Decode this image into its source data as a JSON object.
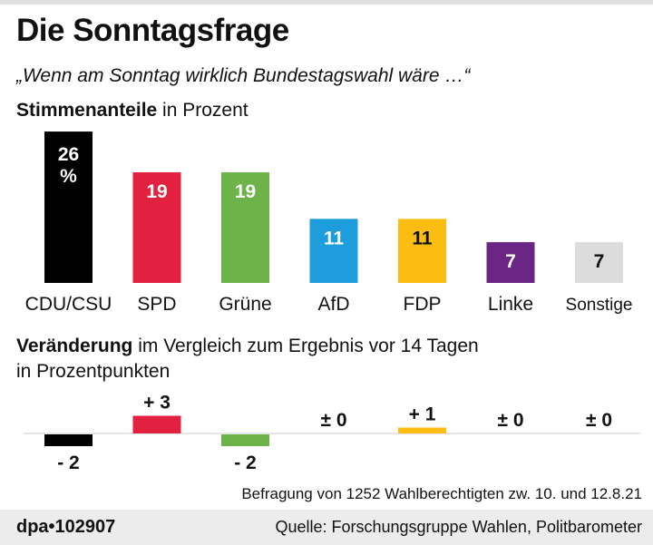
{
  "header": {
    "title": "Die Sonntagsfrage",
    "subtitle": "„Wenn am Sonntag wirklich Bundestagswahl wäre …“"
  },
  "chart_data": [
    {
      "type": "bar",
      "title_bold": "Stimmenanteile",
      "title_rest": " in Prozent",
      "categories": [
        "CDU/CSU",
        "SPD",
        "Grüne",
        "AfD",
        "FDP",
        "Linke",
        "Sonstige"
      ],
      "values": [
        26,
        19,
        19,
        11,
        11,
        7,
        7
      ],
      "labels": [
        "26 %",
        "19",
        "19",
        "11",
        "11",
        "7",
        "7"
      ],
      "colors": [
        "#000000",
        "#e2203f",
        "#6db34a",
        "#1e9ddc",
        "#fbbd12",
        "#6b2585",
        "#dcdcdc"
      ],
      "label_colors": [
        "#ffffff",
        "#ffffff",
        "#ffffff",
        "#ffffff",
        "#111111",
        "#ffffff",
        "#111111"
      ]
    },
    {
      "type": "bar",
      "title_bold": "Veränderung",
      "title_rest": " im Vergleich zum Ergebnis vor 14 Tagen",
      "title_line2": "in Prozentpunkten",
      "categories": [
        "CDU/CSU",
        "SPD",
        "Grüne",
        "AfD",
        "FDP",
        "Linke",
        "Sonstige"
      ],
      "values": [
        -2,
        3,
        -2,
        0,
        1,
        0,
        0
      ],
      "labels": [
        "- 2",
        "+ 3",
        "- 2",
        "± 0",
        "+ 1",
        "± 0",
        "± 0"
      ]
    }
  ],
  "note": "Befragung von 1252 Wahlberechtigten zw. 10. und 12.8.21",
  "footer": {
    "id": "dpa•102907",
    "source": "Quelle: Forschungsgruppe Wahlen, Politbarometer"
  }
}
